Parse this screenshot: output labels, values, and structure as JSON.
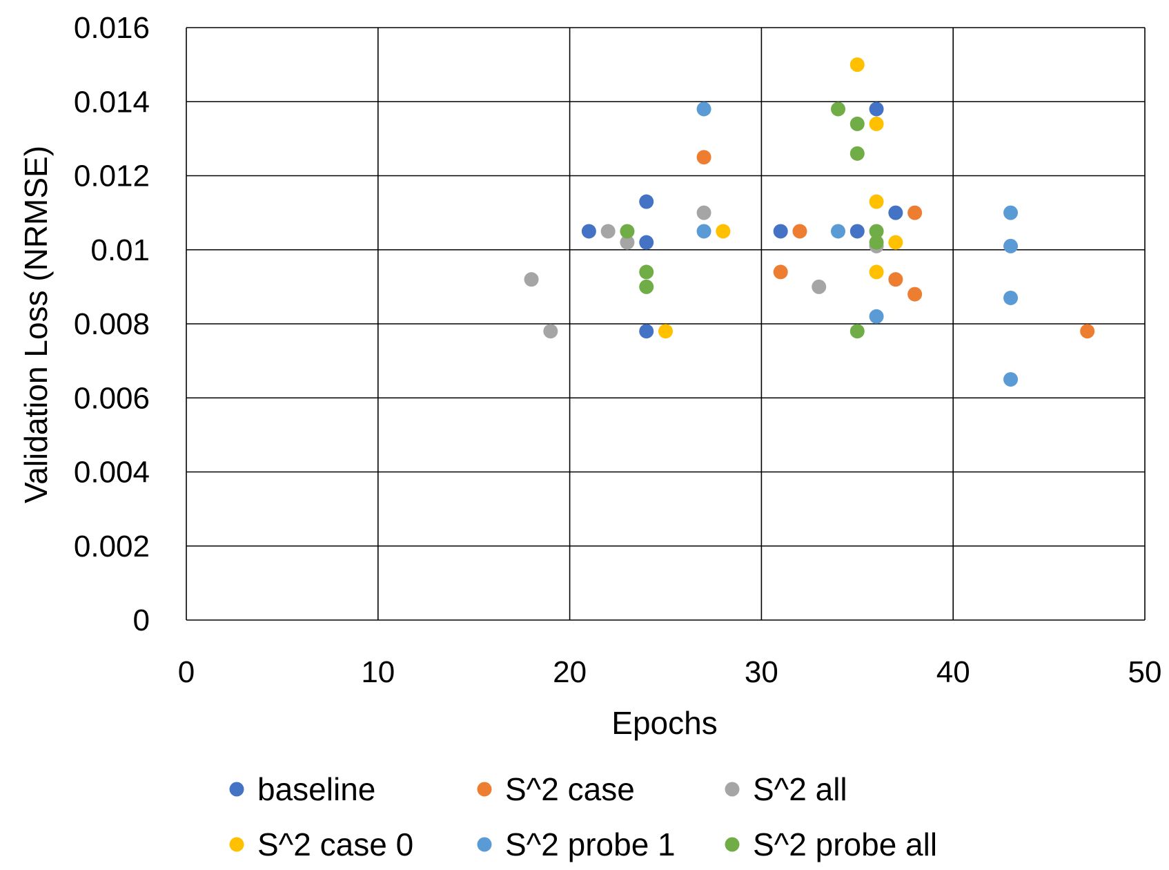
{
  "chart_data": {
    "type": "scatter",
    "title": "",
    "xlabel": "Epochs",
    "ylabel": "Validation Loss (NRMSE)",
    "xlim": [
      0,
      50
    ],
    "ylim": [
      0,
      0.016
    ],
    "x_ticks": [
      "0",
      "10",
      "20",
      "30",
      "40",
      "50"
    ],
    "y_ticks": [
      "0",
      "0.002",
      "0.004",
      "0.006",
      "0.008",
      "0.01",
      "0.012",
      "0.014",
      "0.016"
    ],
    "grid": true,
    "legend_position": "bottom",
    "series": [
      {
        "name": "baseline",
        "color": "#4472C4",
        "points": [
          [
            21,
            0.0105
          ],
          [
            24,
            0.0113
          ],
          [
            24,
            0.0102
          ],
          [
            24,
            0.0078
          ],
          [
            31,
            0.0105
          ],
          [
            35,
            0.0105
          ],
          [
            36,
            0.0138
          ],
          [
            37,
            0.011
          ]
        ]
      },
      {
        "name": "S^2 case",
        "color": "#ED7D31",
        "points": [
          [
            27,
            0.0125
          ],
          [
            31,
            0.0094
          ],
          [
            32,
            0.0105
          ],
          [
            37,
            0.0092
          ],
          [
            38,
            0.011
          ],
          [
            38,
            0.0088
          ],
          [
            47,
            0.0078
          ]
        ]
      },
      {
        "name": "S^2 all",
        "color": "#A5A5A5",
        "points": [
          [
            18,
            0.0092
          ],
          [
            19,
            0.0078
          ],
          [
            22,
            0.0105
          ],
          [
            23,
            0.0102
          ],
          [
            27,
            0.011
          ],
          [
            33,
            0.009
          ],
          [
            36,
            0.0101
          ]
        ]
      },
      {
        "name": "S^2 case 0",
        "color": "#FFC000",
        "points": [
          [
            25,
            0.0078
          ],
          [
            28,
            0.0105
          ],
          [
            35,
            0.015
          ],
          [
            36,
            0.0134
          ],
          [
            36,
            0.0113
          ],
          [
            36,
            0.0094
          ],
          [
            37,
            0.0102
          ]
        ]
      },
      {
        "name": "S^2 probe 1",
        "color": "#5B9BD5",
        "points": [
          [
            27,
            0.0138
          ],
          [
            27,
            0.0105
          ],
          [
            34,
            0.0105
          ],
          [
            36,
            0.0082
          ],
          [
            43,
            0.011
          ],
          [
            43,
            0.0101
          ],
          [
            43,
            0.0087
          ],
          [
            43,
            0.0065
          ]
        ]
      },
      {
        "name": "S^2 probe all",
        "color": "#70AD47",
        "points": [
          [
            23,
            0.0105
          ],
          [
            24,
            0.0094
          ],
          [
            24,
            0.009
          ],
          [
            34,
            0.0138
          ],
          [
            35,
            0.0134
          ],
          [
            35,
            0.0126
          ],
          [
            35,
            0.0078
          ],
          [
            36,
            0.0105
          ],
          [
            36,
            0.0102
          ]
        ]
      }
    ]
  }
}
